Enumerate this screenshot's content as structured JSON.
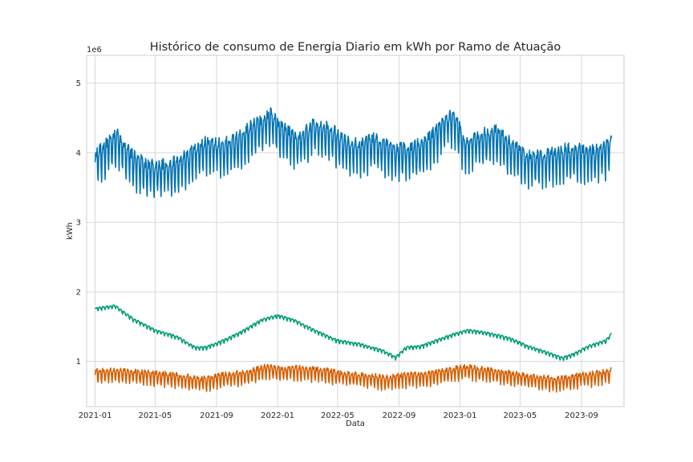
{
  "chart_data": {
    "type": "line",
    "title": "Histórico de consumo de Energia Diario em kWh por Ramo de Atuação",
    "xlabel": "Data",
    "ylabel": "kWh",
    "y_offset_label": "1e6",
    "x_range": [
      "2020-12-15",
      "2023-11-25"
    ],
    "ylim": [
      0.35,
      5.4
    ],
    "x_ticks": [
      "2021-01",
      "2021-05",
      "2021-09",
      "2022-01",
      "2022-05",
      "2022-09",
      "2023-01",
      "2023-05",
      "2023-09"
    ],
    "y_ticks": [
      1,
      2,
      3,
      4,
      5
    ],
    "grid": true,
    "colors": [
      "#0072b2",
      "#009e73",
      "#d55e00"
    ],
    "series": [
      {
        "color": "#0072b2",
        "weekly_amplitude": 0.3,
        "anchor_dates": [
          "2021-01-01",
          "2021-02-15",
          "2021-03-15",
          "2021-04-15",
          "2021-05-15",
          "2021-06-15",
          "2021-07-15",
          "2021-08-15",
          "2021-09-15",
          "2021-10-15",
          "2021-11-15",
          "2021-12-01",
          "2021-12-20",
          "2022-01-05",
          "2022-02-15",
          "2022-03-15",
          "2022-04-15",
          "2022-05-15",
          "2022-06-15",
          "2022-07-15",
          "2022-08-15",
          "2022-09-15",
          "2022-10-15",
          "2022-11-15",
          "2022-12-01",
          "2022-12-20",
          "2023-01-10",
          "2023-02-15",
          "2023-03-15",
          "2023-04-15",
          "2023-05-15",
          "2023-06-15",
          "2023-07-15",
          "2023-08-15",
          "2023-09-15",
          "2023-10-15",
          "2023-10-31"
        ],
        "anchor_values": [
          3.9,
          4.2,
          3.9,
          3.75,
          3.75,
          3.8,
          3.95,
          4.1,
          4.05,
          4.15,
          4.35,
          4.4,
          4.5,
          4.3,
          4.15,
          4.35,
          4.3,
          4.1,
          4.05,
          4.15,
          4.0,
          4.0,
          4.05,
          4.25,
          4.4,
          4.5,
          4.1,
          4.2,
          4.25,
          4.05,
          3.9,
          3.9,
          3.95,
          4.0,
          3.95,
          4.0,
          4.1
        ]
      },
      {
        "color": "#009e73",
        "weekly_amplitude": 0.03,
        "anchor_dates": [
          "2021-01-01",
          "2021-02-10",
          "2021-03-20",
          "2021-05-01",
          "2021-06-15",
          "2021-07-20",
          "2021-08-10",
          "2021-09-15",
          "2021-10-20",
          "2021-12-01",
          "2022-01-01",
          "2022-02-01",
          "2022-03-15",
          "2022-05-01",
          "2022-06-15",
          "2022-08-01",
          "2022-08-25",
          "2022-09-15",
          "2022-10-15",
          "2022-11-15",
          "2022-12-15",
          "2023-01-15",
          "2023-02-15",
          "2023-03-15",
          "2023-04-15",
          "2023-05-15",
          "2023-06-15",
          "2023-07-25",
          "2023-08-15",
          "2023-09-15",
          "2023-10-20",
          "2023-10-31"
        ],
        "anchor_values": [
          1.76,
          1.8,
          1.6,
          1.45,
          1.35,
          1.2,
          1.2,
          1.3,
          1.42,
          1.6,
          1.66,
          1.6,
          1.45,
          1.3,
          1.25,
          1.15,
          1.06,
          1.2,
          1.22,
          1.3,
          1.38,
          1.45,
          1.42,
          1.38,
          1.32,
          1.22,
          1.15,
          1.05,
          1.1,
          1.22,
          1.3,
          1.4
        ]
      },
      {
        "color": "#d55e00",
        "weekly_amplitude": 0.12,
        "anchor_dates": [
          "2021-01-01",
          "2021-02-15",
          "2021-04-01",
          "2021-05-15",
          "2021-07-01",
          "2021-08-01",
          "2021-09-15",
          "2021-11-01",
          "2021-12-10",
          "2022-01-01",
          "2022-02-15",
          "2022-04-01",
          "2022-05-15",
          "2022-07-01",
          "2022-08-10",
          "2022-09-15",
          "2022-11-01",
          "2022-12-15",
          "2023-01-15",
          "2023-03-01",
          "2023-04-15",
          "2023-06-01",
          "2023-07-15",
          "2023-09-01",
          "2023-10-15",
          "2023-10-31"
        ],
        "anchor_values": [
          0.83,
          0.85,
          0.82,
          0.8,
          0.76,
          0.72,
          0.78,
          0.82,
          0.9,
          0.87,
          0.88,
          0.85,
          0.8,
          0.78,
          0.74,
          0.78,
          0.8,
          0.86,
          0.9,
          0.85,
          0.8,
          0.75,
          0.72,
          0.78,
          0.82,
          0.85
        ]
      }
    ]
  }
}
